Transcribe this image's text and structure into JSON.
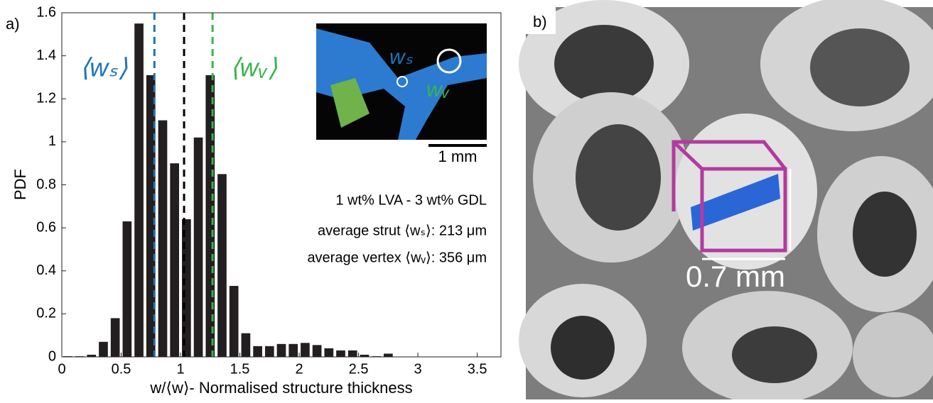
{
  "chart_data": {
    "type": "histogram",
    "panel_label": "a)",
    "xlabel": "w/⟨w⟩- Normalised structure thickness",
    "ylabel": "PDF",
    "bins": [
      0,
      0.1,
      0.2,
      0.3,
      0.4,
      0.5,
      0.6,
      0.7,
      0.8,
      0.9,
      1.0,
      1.1,
      1.2,
      1.3,
      1.4,
      1.5,
      1.6,
      1.7,
      1.8,
      1.9,
      2.0,
      2.1,
      2.2,
      2.3,
      2.4,
      2.5,
      2.6,
      2.7,
      2.8
    ],
    "values": [
      0.003,
      0.003,
      0.01,
      0.07,
      0.18,
      0.63,
      1.55,
      1.31,
      1.1,
      0.9,
      0.64,
      1.02,
      1.31,
      0.85,
      0.33,
      0.11,
      0.05,
      0.05,
      0.06,
      0.06,
      0.065,
      0.055,
      0.04,
      0.03,
      0.03,
      0.01,
      0.003,
      0.015
    ],
    "color": "#231f20",
    "xlim": [
      0,
      3.7
    ],
    "ylim": [
      0,
      1.6
    ],
    "xticks": [
      0,
      0.5,
      1,
      1.5,
      2,
      2.5,
      3,
      3.5
    ],
    "yticks": [
      0,
      0.2,
      0.4,
      0.6,
      0.8,
      1,
      1.2,
      1.4,
      1.6
    ],
    "vlines": [
      {
        "value": 0.78,
        "color": "#1a75bc"
      },
      {
        "value": 1.03,
        "color": "#000000"
      },
      {
        "value": 1.27,
        "color": "#39b54a"
      }
    ],
    "annotations": {
      "strut_mean": "⟨wₛ⟩",
      "vertex_mean": "⟨wᵥ⟩",
      "inset_strut": "wₛ",
      "inset_vertex": "wᵥ",
      "scale_bar": "1 mm",
      "lines": [
        "1 wt% LVA - 3 wt% GDL",
        "average strut ⟨wₛ⟩: 213 μm",
        "average vertex ⟨wᵥ⟩: 356 μm"
      ]
    },
    "panel_b": {
      "label": "b)",
      "scale": "0.7 mm"
    }
  }
}
